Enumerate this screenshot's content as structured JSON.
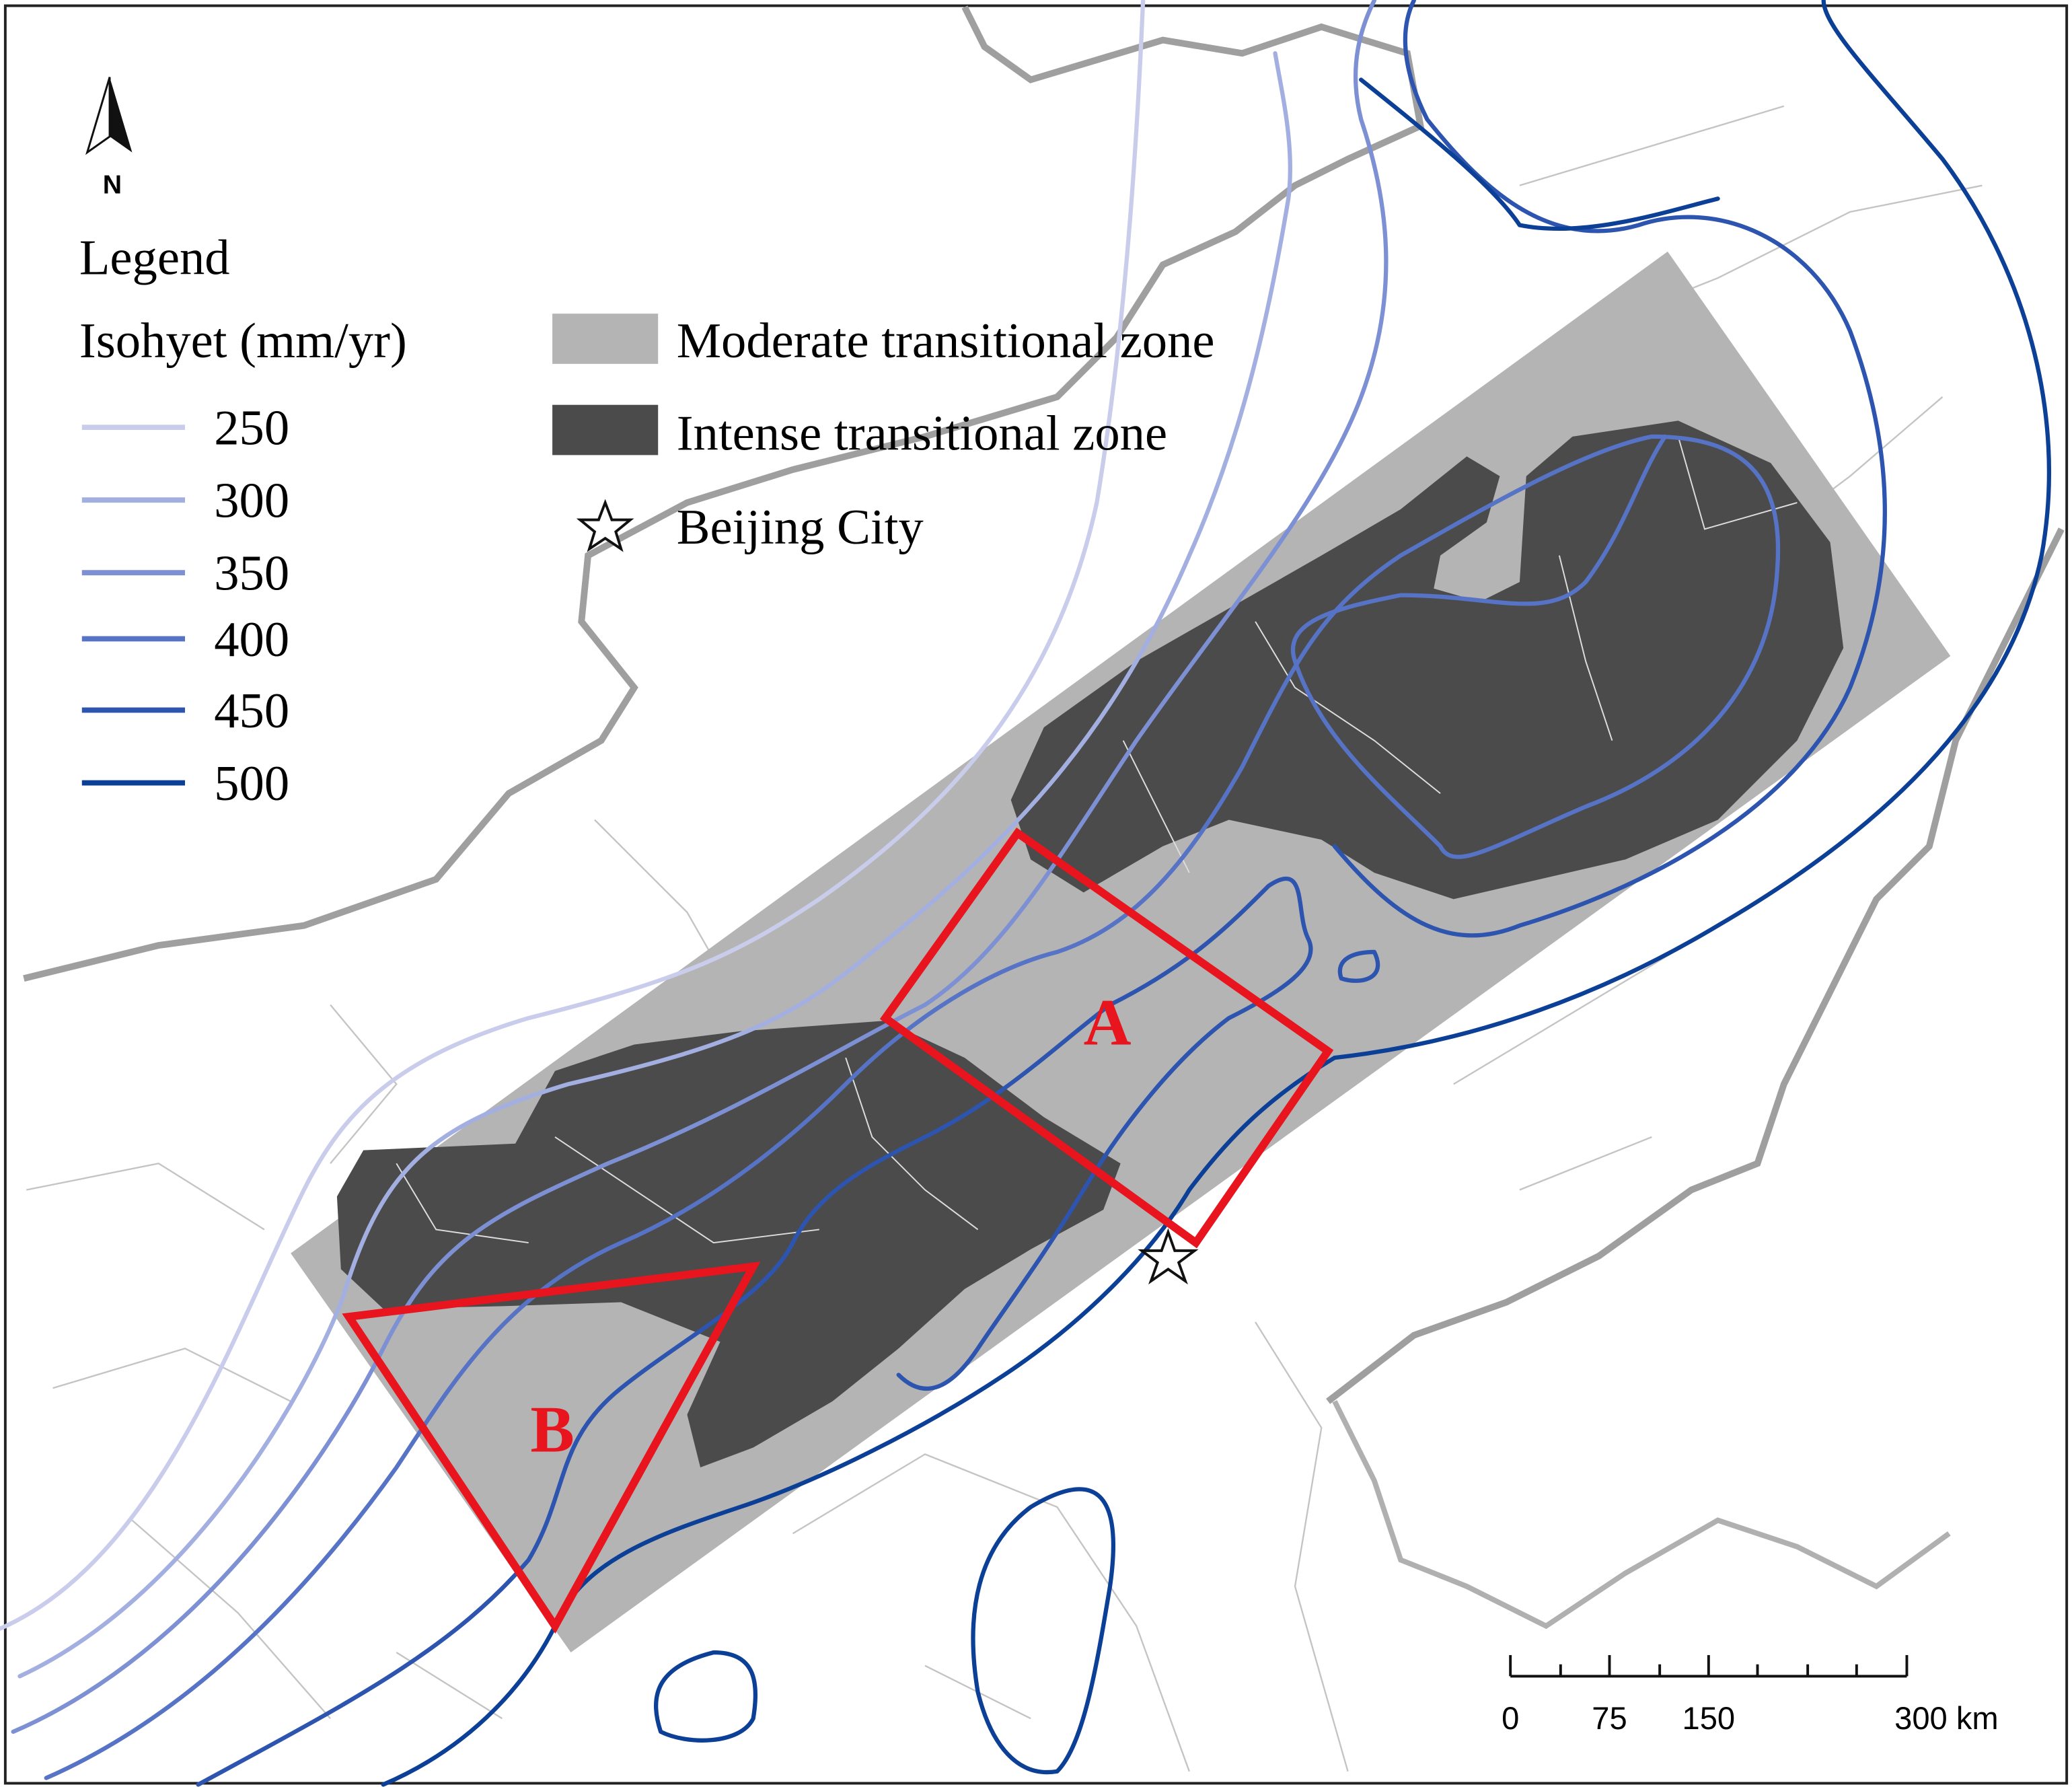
{
  "north_arrow": {
    "label": "N"
  },
  "legend": {
    "title": "Legend",
    "isohyet_title": "Isohyet (mm/yr)",
    "isohyets": [
      {
        "value": 250,
        "color": "#c9cdeb"
      },
      {
        "value": 300,
        "color": "#a3afe0"
      },
      {
        "value": 350,
        "color": "#7e90d4"
      },
      {
        "value": 400,
        "color": "#5673c6"
      },
      {
        "value": 450,
        "color": "#2d54ae"
      },
      {
        "value": 500,
        "color": "#0c3f96"
      }
    ],
    "zones": [
      {
        "label": "Moderate transitional zone",
        "color": "#b4b4b4"
      },
      {
        "label": "Intense transitional zone",
        "color": "#4b4b4b"
      }
    ],
    "city": {
      "label": "Beijing City"
    }
  },
  "regions": {
    "a": "A",
    "b": "B"
  },
  "scale_bar": {
    "labels": [
      "0",
      "75",
      "150",
      "300 km"
    ]
  }
}
